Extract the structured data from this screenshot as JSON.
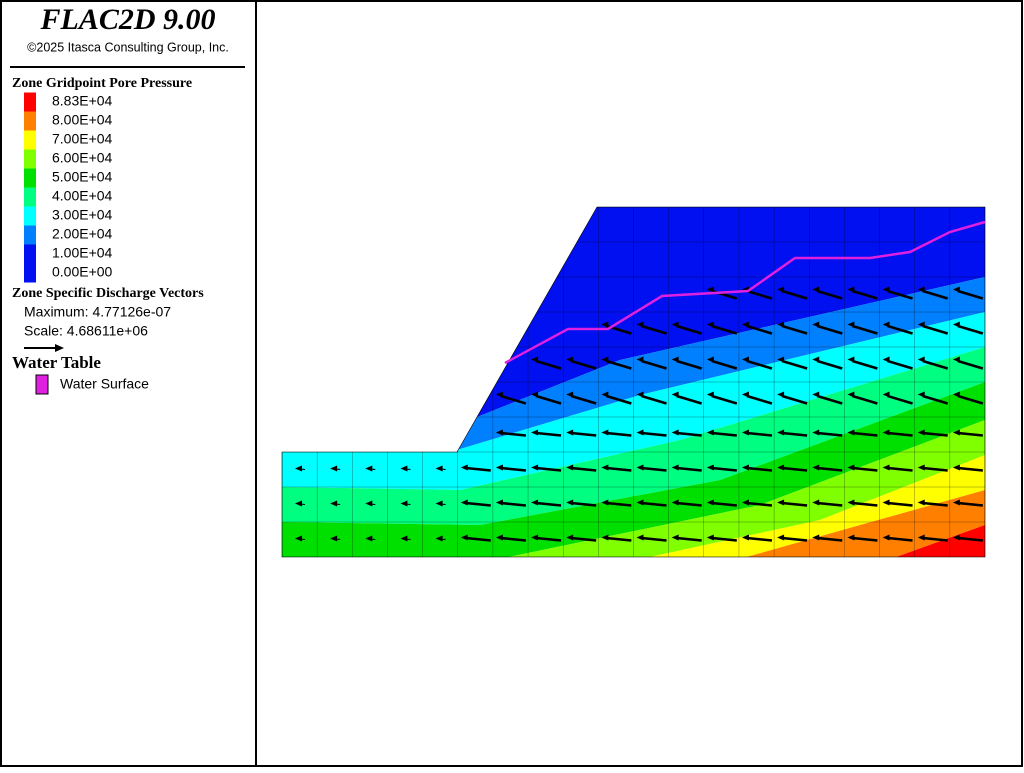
{
  "header": {
    "title": "FLAC2D 9.00",
    "copyright": "©2025 Itasca Consulting Group, Inc."
  },
  "legend": {
    "contour": {
      "title": "Zone Gridpoint Pore Pressure",
      "levels": [
        {
          "label": "8.83E+04",
          "color": "#ff0000"
        },
        {
          "label": "8.00E+04",
          "color": "#ff8000"
        },
        {
          "label": "7.00E+04",
          "color": "#ffff00"
        },
        {
          "label": "6.00E+04",
          "color": "#80ff00"
        },
        {
          "label": "5.00E+04",
          "color": "#00e000"
        },
        {
          "label": "4.00E+04",
          "color": "#00ff80"
        },
        {
          "label": "3.00E+04",
          "color": "#00ffff"
        },
        {
          "label": "2.00E+04",
          "color": "#0080ff"
        },
        {
          "label": "1.00E+04",
          "color": "#0010f0"
        },
        {
          "label": "0.00E+00",
          "color": "#0010f0"
        }
      ]
    },
    "vectors": {
      "title": "Zone Specific Discharge Vectors",
      "maximum": "Maximum: 4.77126e-07",
      "scale": "Scale: 4.68611e+06"
    },
    "water": {
      "title": "Water Table",
      "item": "Water Surface",
      "color": "#e020e0"
    }
  }
}
